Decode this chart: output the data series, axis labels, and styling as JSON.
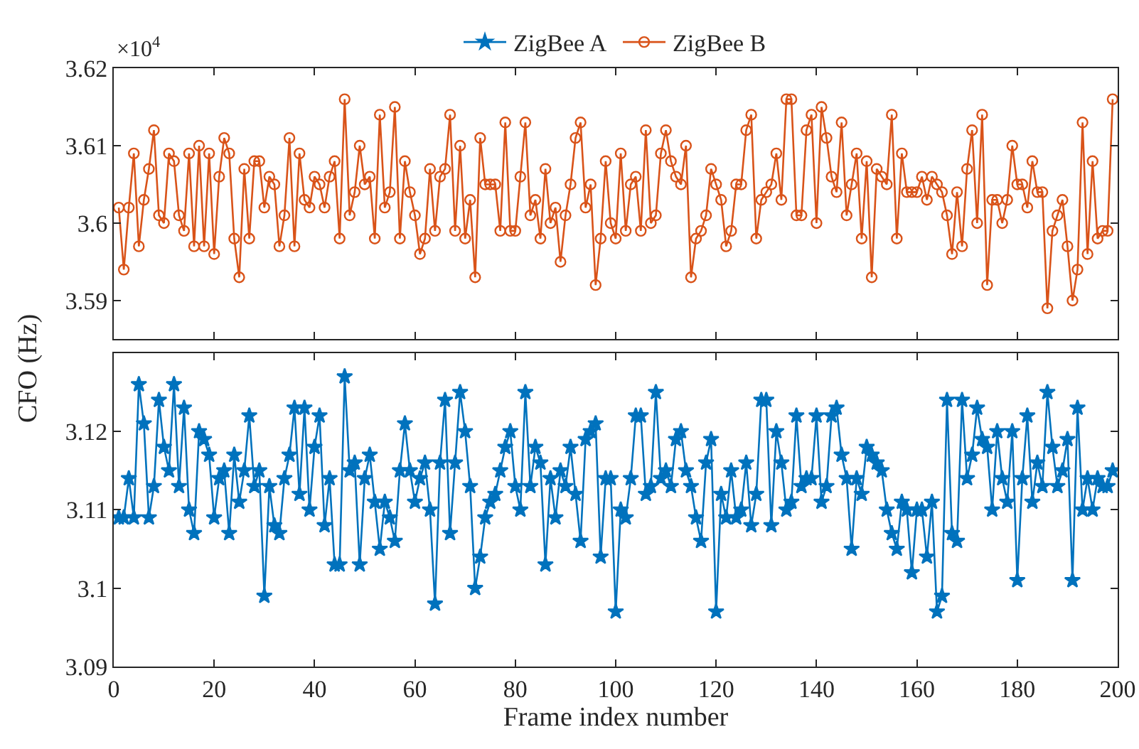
{
  "chart_data": [
    {
      "type": "line",
      "annotations": [
        "×10$^{4}$"
      ],
      "legend": "top",
      "tick_labels": "y",
      "grid": false,
      "line_style": "solid",
      "x": [
        1,
        2,
        3,
        4,
        5,
        6,
        7,
        8,
        9,
        10,
        11,
        12,
        13,
        14,
        15,
        16,
        17,
        18,
        19,
        20,
        21,
        22,
        23,
        24,
        25,
        26,
        27,
        28,
        29,
        30,
        31,
        32,
        33,
        34,
        35,
        36,
        37,
        38,
        39,
        40,
        41,
        42,
        43,
        44,
        45,
        46,
        47,
        48,
        49,
        50,
        51,
        52,
        53,
        54,
        55,
        56,
        57,
        58,
        59,
        60,
        61,
        62,
        63,
        64,
        65,
        66,
        67,
        68,
        69,
        70,
        71,
        72,
        73,
        74,
        75,
        76,
        77,
        78,
        79,
        80,
        81,
        82,
        83,
        84,
        85,
        86,
        87,
        88,
        89,
        90,
        91,
        92,
        93,
        94,
        95,
        96,
        97,
        98,
        99,
        100,
        101,
        102,
        103,
        104,
        105,
        106,
        107,
        108,
        109,
        110,
        111,
        112,
        113,
        114,
        115,
        116,
        117,
        118,
        119,
        120,
        121,
        122,
        123,
        124,
        125,
        126,
        127,
        128,
        129,
        130,
        131,
        132,
        133,
        134,
        135,
        136,
        137,
        138,
        139,
        140,
        141,
        142,
        143,
        144,
        145,
        146,
        147,
        148,
        149,
        150,
        151,
        152,
        153,
        154,
        155,
        156,
        157,
        158,
        159,
        160,
        161,
        162,
        163,
        164,
        165,
        166,
        167,
        168,
        169,
        170,
        171,
        172,
        173,
        174,
        175,
        176,
        177,
        178,
        179,
        180,
        181,
        182,
        183,
        184,
        185,
        186,
        187,
        188,
        189,
        190,
        191,
        192,
        193,
        194,
        195,
        196,
        197,
        198,
        199
      ],
      "series": [
        {
          "name": "ZigBee B",
          "color": "#d95319",
          "marker": "circle",
          "values": [
            3.602,
            3.594,
            3.602,
            3.609,
            3.597,
            3.603,
            3.607,
            3.612,
            3.601,
            3.6,
            3.609,
            3.608,
            3.601,
            3.599,
            3.609,
            3.597,
            3.61,
            3.597,
            3.609,
            3.596,
            3.606,
            3.611,
            3.609,
            3.598,
            3.593,
            3.607,
            3.598,
            3.608,
            3.608,
            3.602,
            3.606,
            3.605,
            3.597,
            3.601,
            3.611,
            3.597,
            3.609,
            3.603,
            3.602,
            3.606,
            3.605,
            3.602,
            3.606,
            3.608,
            3.598,
            3.616,
            3.601,
            3.604,
            3.61,
            3.605,
            3.606,
            3.598,
            3.614,
            3.602,
            3.604,
            3.615,
            3.598,
            3.608,
            3.604,
            3.601,
            3.596,
            3.598,
            3.607,
            3.599,
            3.606,
            3.607,
            3.614,
            3.599,
            3.61,
            3.598,
            3.603,
            3.593,
            3.611,
            3.605,
            3.605,
            3.605,
            3.599,
            3.613,
            3.599,
            3.599,
            3.606,
            3.613,
            3.601,
            3.603,
            3.598,
            3.607,
            3.6,
            3.602,
            3.595,
            3.601,
            3.605,
            3.611,
            3.613,
            3.602,
            3.605,
            3.592,
            3.598,
            3.608,
            3.6,
            3.598,
            3.609,
            3.599,
            3.605,
            3.606,
            3.599,
            3.612,
            3.6,
            3.601,
            3.609,
            3.612,
            3.608,
            3.606,
            3.605,
            3.61,
            3.593,
            3.598,
            3.599,
            3.601,
            3.607,
            3.605,
            3.603,
            3.597,
            3.599,
            3.605,
            3.605,
            3.612,
            3.614,
            3.598,
            3.603,
            3.604,
            3.605,
            3.609,
            3.603,
            3.616,
            3.616,
            3.601,
            3.601,
            3.612,
            3.614,
            3.6,
            3.615,
            3.611,
            3.606,
            3.604,
            3.613,
            3.601,
            3.605,
            3.609,
            3.598,
            3.608,
            3.593,
            3.607,
            3.606,
            3.605,
            3.614,
            3.598,
            3.609,
            3.604,
            3.604,
            3.604,
            3.606,
            3.603,
            3.606,
            3.605,
            3.604,
            3.601,
            3.596,
            3.604,
            3.597,
            3.607,
            3.612,
            3.6,
            3.614,
            3.592,
            3.603,
            3.603,
            3.6,
            3.603,
            3.61,
            3.605,
            3.605,
            3.602,
            3.608,
            3.604,
            3.604,
            3.589,
            3.599,
            3.601,
            3.603,
            3.597,
            3.59,
            3.594,
            3.613,
            3.596,
            3.608,
            3.598,
            3.599,
            3.599,
            3.616
          ]
        }
      ],
      "xlim": [
        0,
        200
      ],
      "xticks": [
        0,
        20,
        40,
        60,
        80,
        100,
        120,
        140,
        160,
        180,
        200
      ],
      "ylim": [
        3.585,
        3.62
      ],
      "yticks": [
        3.59,
        3.6,
        3.61,
        3.62
      ]
    },
    {
      "type": "line",
      "xlabel": "Frame index number",
      "ylabel": "CFO (Hz)",
      "legend": "top",
      "grid": false,
      "line_style": "solid",
      "x": [
        1,
        2,
        3,
        4,
        5,
        6,
        7,
        8,
        9,
        10,
        11,
        12,
        13,
        14,
        15,
        16,
        17,
        18,
        19,
        20,
        21,
        22,
        23,
        24,
        25,
        26,
        27,
        28,
        29,
        30,
        31,
        32,
        33,
        34,
        35,
        36,
        37,
        38,
        39,
        40,
        41,
        42,
        43,
        44,
        45,
        46,
        47,
        48,
        49,
        50,
        51,
        52,
        53,
        54,
        55,
        56,
        57,
        58,
        59,
        60,
        61,
        62,
        63,
        64,
        65,
        66,
        67,
        68,
        69,
        70,
        71,
        72,
        73,
        74,
        75,
        76,
        77,
        78,
        79,
        80,
        81,
        82,
        83,
        84,
        85,
        86,
        87,
        88,
        89,
        90,
        91,
        92,
        93,
        94,
        95,
        96,
        97,
        98,
        99,
        100,
        101,
        102,
        103,
        104,
        105,
        106,
        107,
        108,
        109,
        110,
        111,
        112,
        113,
        114,
        115,
        116,
        117,
        118,
        119,
        120,
        121,
        122,
        123,
        124,
        125,
        126,
        127,
        128,
        129,
        130,
        131,
        132,
        133,
        134,
        135,
        136,
        137,
        138,
        139,
        140,
        141,
        142,
        143,
        144,
        145,
        146,
        147,
        148,
        149,
        150,
        151,
        152,
        153,
        154,
        155,
        156,
        157,
        158,
        159,
        160,
        161,
        162,
        163,
        164,
        165,
        166,
        167,
        168,
        169,
        170,
        171,
        172,
        173,
        174,
        175,
        176,
        177,
        178,
        179,
        180,
        181,
        182,
        183,
        184,
        185,
        186,
        187,
        188,
        189,
        190,
        191,
        192,
        193,
        194,
        195,
        196,
        197,
        198,
        199
      ],
      "series": [
        {
          "name": "ZigBee A",
          "color": "#0072bd",
          "marker": "star",
          "values": [
            3.109,
            3.109,
            3.114,
            3.109,
            3.126,
            3.121,
            3.109,
            3.113,
            3.124,
            3.118,
            3.115,
            3.126,
            3.113,
            3.123,
            3.11,
            3.107,
            3.12,
            3.119,
            3.117,
            3.109,
            3.114,
            3.115,
            3.107,
            3.117,
            3.111,
            3.115,
            3.122,
            3.113,
            3.115,
            3.099,
            3.113,
            3.108,
            3.107,
            3.114,
            3.117,
            3.123,
            3.112,
            3.123,
            3.11,
            3.118,
            3.122,
            3.108,
            3.114,
            3.103,
            3.103,
            3.127,
            3.115,
            3.116,
            3.103,
            3.114,
            3.117,
            3.111,
            3.105,
            3.111,
            3.109,
            3.106,
            3.115,
            3.121,
            3.115,
            3.111,
            3.114,
            3.116,
            3.11,
            3.098,
            3.116,
            3.124,
            3.107,
            3.116,
            3.125,
            3.12,
            3.113,
            3.1,
            3.104,
            3.109,
            3.111,
            3.112,
            3.115,
            3.118,
            3.12,
            3.113,
            3.11,
            3.125,
            3.113,
            3.118,
            3.116,
            3.103,
            3.114,
            3.109,
            3.115,
            3.113,
            3.118,
            3.112,
            3.106,
            3.119,
            3.12,
            3.121,
            3.104,
            3.114,
            3.114,
            3.097,
            3.11,
            3.109,
            3.114,
            3.122,
            3.122,
            3.112,
            3.113,
            3.125,
            3.114,
            3.115,
            3.113,
            3.119,
            3.12,
            3.115,
            3.113,
            3.109,
            3.106,
            3.116,
            3.119,
            3.097,
            3.112,
            3.109,
            3.115,
            3.109,
            3.11,
            3.116,
            3.108,
            3.112,
            3.124,
            3.124,
            3.108,
            3.12,
            3.116,
            3.11,
            3.111,
            3.122,
            3.113,
            3.114,
            3.114,
            3.122,
            3.111,
            3.113,
            3.122,
            3.123,
            3.117,
            3.114,
            3.105,
            3.114,
            3.112,
            3.118,
            3.117,
            3.116,
            3.115,
            3.11,
            3.107,
            3.105,
            3.111,
            3.11,
            3.102,
            3.11,
            3.11,
            3.104,
            3.111,
            3.097,
            3.099,
            3.124,
            3.107,
            3.106,
            3.124,
            3.114,
            3.117,
            3.123,
            3.119,
            3.118,
            3.11,
            3.12,
            3.114,
            3.111,
            3.12,
            3.101,
            3.114,
            3.122,
            3.111,
            3.116,
            3.113,
            3.125,
            3.118,
            3.113,
            3.115,
            3.119,
            3.101,
            3.123,
            3.11,
            3.114,
            3.11,
            3.114,
            3.113,
            3.113,
            3.115
          ]
        }
      ],
      "xlim": [
        0,
        200
      ],
      "xticks": [
        0,
        20,
        40,
        60,
        80,
        100,
        120,
        140,
        160,
        180,
        200
      ],
      "ylim": [
        3.09,
        3.13
      ],
      "yticks": [
        3.09,
        3.1,
        3.11,
        3.12
      ]
    }
  ]
}
